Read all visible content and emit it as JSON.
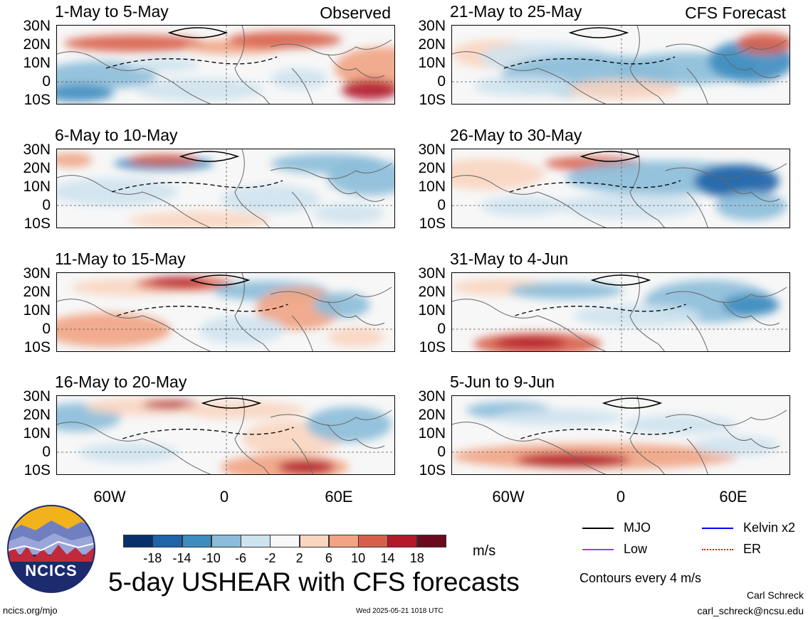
{
  "panels": [
    {
      "title": "1-May to 5-May",
      "tag": "Observed"
    },
    {
      "title": "21-May to 25-May",
      "tag": "CFS Forecast"
    },
    {
      "title": "6-May to 10-May",
      "tag": ""
    },
    {
      "title": "26-May to 30-May",
      "tag": ""
    },
    {
      "title": "11-May to 15-May",
      "tag": ""
    },
    {
      "title": "31-May to 4-Jun",
      "tag": ""
    },
    {
      "title": "16-May to 20-May",
      "tag": ""
    },
    {
      "title": "5-Jun to 9-Jun",
      "tag": ""
    }
  ],
  "lat_labels": [
    "30N",
    "20N",
    "10N",
    "0",
    "10S"
  ],
  "lon_labels": [
    "60W",
    "0",
    "60E"
  ],
  "colorbar": {
    "labels": [
      "-18",
      "-14",
      "-10",
      "-6",
      "-2",
      "2",
      "6",
      "10",
      "14",
      "18"
    ],
    "unit": "m/s",
    "colors": [
      "#08306b",
      "#1f63a8",
      "#3d8cc0",
      "#8bbcd9",
      "#cfe3ef",
      "#f8f8f8",
      "#fad5c0",
      "#f1a383",
      "#d85f4b",
      "#b3182b",
      "#6b0a1f"
    ]
  },
  "legend": {
    "items": [
      {
        "label": "MJO",
        "color": "#000000"
      },
      {
        "label": "Kelvin x2",
        "color": "#0000ff"
      },
      {
        "label": "Low",
        "color": "#a040e0"
      },
      {
        "label": "ER",
        "color": "#ff0000"
      }
    ],
    "note": "Contours every 4 m/s"
  },
  "logo": {
    "text": "NCICS"
  },
  "footer": {
    "title": "5-day USHEAR with CFS forecasts",
    "url": "ncics.org/mjo",
    "timestamp": "Wed 2025-05-21 1018 UTC",
    "author": "Carl Schreck",
    "email": "carl_schreck@ncsu.edu"
  }
}
